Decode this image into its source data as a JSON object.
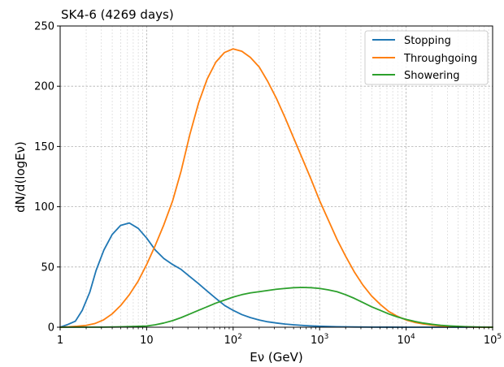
{
  "chart_data": {
    "type": "line",
    "title": "SK4-6 (4269 days)",
    "xlabel": "Eν (GeV)",
    "ylabel": "dN/d(logEν)",
    "xscale": "log",
    "xlim": [
      1,
      100000
    ],
    "ylim": [
      0,
      250
    ],
    "grid": true,
    "legend_position": "top-right",
    "yticks": [
      "0",
      "50",
      "100",
      "150",
      "200",
      "250"
    ],
    "xticks": [
      {
        "base": "1",
        "exp": ""
      },
      {
        "base": "10",
        "exp": ""
      },
      {
        "base": "10",
        "exp": "2"
      },
      {
        "base": "10",
        "exp": "3"
      },
      {
        "base": "10",
        "exp": "4"
      },
      {
        "base": "10",
        "exp": "5"
      }
    ],
    "series": [
      {
        "name": "Stopping",
        "color": "#1f77b4",
        "x": [
          1,
          1.2,
          1.5,
          1.8,
          2.2,
          2.6,
          3.2,
          4,
          5,
          6.3,
          8,
          10,
          12.6,
          15.8,
          20,
          25,
          31.6,
          40,
          50,
          63,
          80,
          100,
          126,
          158,
          200,
          251,
          316,
          400,
          500,
          631,
          794,
          1000,
          1585,
          2512,
          3981,
          6310,
          10000,
          100000
        ],
        "y": [
          0,
          2,
          5,
          14,
          29,
          47,
          64,
          77,
          84.5,
          86.5,
          82,
          74,
          64,
          57,
          52,
          48,
          42,
          36,
          30,
          24,
          18,
          14,
          10.5,
          8,
          6,
          4.5,
          3.5,
          2.6,
          2,
          1.5,
          1.1,
          0.8,
          0.4,
          0.2,
          0.1,
          0.05,
          0,
          0
        ]
      },
      {
        "name": "Throughgoing",
        "color": "#ff7f0e",
        "x": [
          1,
          1.26,
          1.58,
          2,
          2.51,
          3.16,
          3.98,
          5.01,
          6.31,
          7.94,
          10,
          12.6,
          15.8,
          20,
          25.1,
          31.6,
          39.8,
          50.1,
          63.1,
          79.4,
          100,
          126,
          158,
          200,
          251,
          316,
          398,
          501,
          631,
          794,
          1000,
          1259,
          1585,
          1995,
          2512,
          3162,
          3981,
          5012,
          6310,
          7943,
          10000,
          12589,
          15849,
          19953,
          25119,
          31623,
          39811,
          50119,
          63096,
          79433,
          100000
        ],
        "y": [
          0,
          0.3,
          0.8,
          1.5,
          3,
          6,
          11,
          18,
          27,
          38,
          52,
          68,
          85,
          105,
          130,
          160,
          186,
          206,
          220,
          228,
          231,
          229,
          224,
          216,
          204,
          190,
          174,
          157,
          140,
          123,
          105,
          89,
          73,
          59,
          46,
          35,
          26,
          19,
          13,
          9,
          6,
          4,
          2.7,
          1.8,
          1.1,
          0.7,
          0.4,
          0.2,
          0.1,
          0.05,
          0
        ]
      },
      {
        "name": "Showering",
        "color": "#2ca02c",
        "x": [
          1,
          3.16,
          5,
          7.94,
          10,
          12.6,
          15.8,
          20,
          25.1,
          31.6,
          39.8,
          50.1,
          63.1,
          79.4,
          100,
          126,
          158,
          200,
          251,
          316,
          398,
          501,
          631,
          794,
          1000,
          1259,
          1585,
          1995,
          2512,
          3162,
          3981,
          5012,
          6310,
          7943,
          10000,
          12589,
          15849,
          19953,
          25119,
          31623,
          39811,
          50119,
          63096,
          79433,
          100000
        ],
        "y": [
          0,
          0.1,
          0.3,
          0.7,
          1,
          2,
          3.5,
          5.5,
          8,
          11,
          14,
          17,
          20,
          22.5,
          25,
          27,
          28.5,
          29.5,
          30.5,
          31.5,
          32.2,
          32.8,
          33,
          32.8,
          32.2,
          31,
          29.5,
          27,
          24,
          20.5,
          17,
          14,
          11,
          8.5,
          6.5,
          4.8,
          3.4,
          2.4,
          1.6,
          1.1,
          0.7,
          0.4,
          0.2,
          0.1,
          0
        ]
      }
    ]
  }
}
